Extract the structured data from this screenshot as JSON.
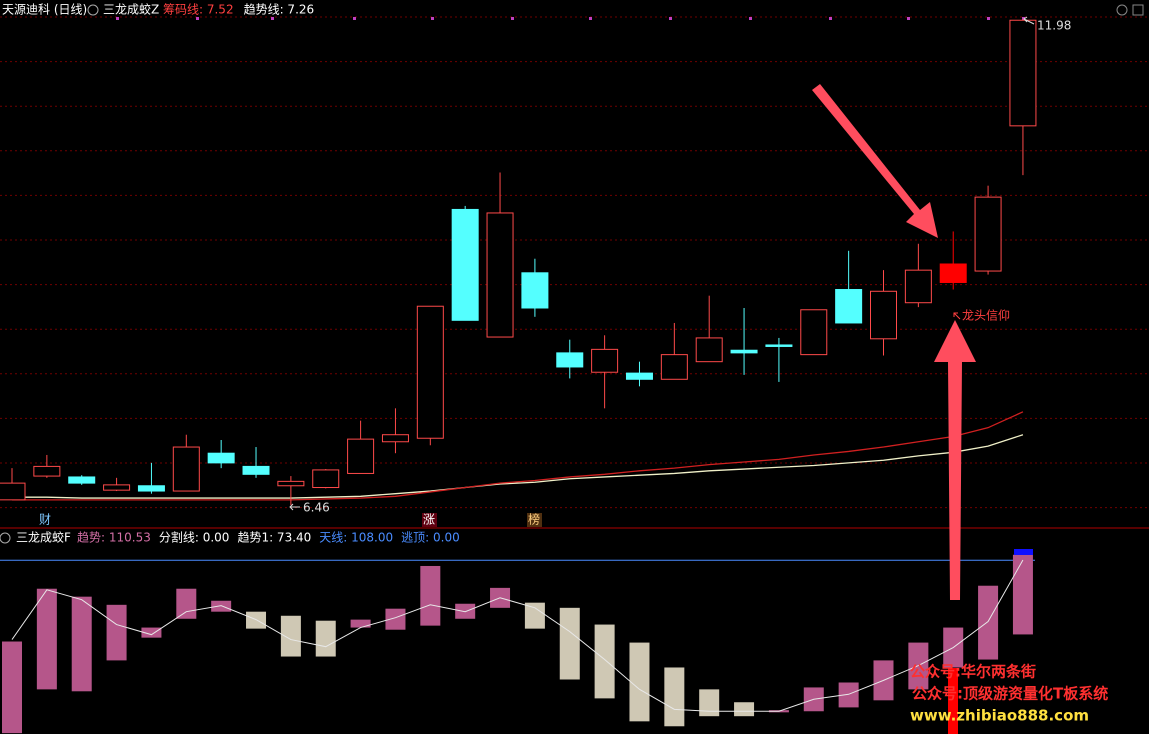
{
  "chart_data": [
    {
      "type": "candlestick",
      "title": "天源迪科 (日线)",
      "indicator": "三龙成蛟Z",
      "legend": [
        {
          "text": "筹码线: 7.52",
          "color": "#ff4040"
        },
        {
          "text": "趋势线: 7.26",
          "color": "#ffffff"
        }
      ],
      "ylim": [
        6.2,
        12.2
      ],
      "open": [
        6.52,
        6.79,
        6.78,
        6.63,
        6.68,
        6.62,
        7.05,
        6.9,
        6.68,
        6.66,
        6.82,
        7.18,
        7.22,
        9.82,
        8.37,
        9.1,
        8.19,
        7.97,
        7.96,
        7.89,
        8.09,
        8.22,
        8.28,
        8.17,
        8.91,
        8.35,
        8.76,
        8.99,
        9.12,
        10.77
      ],
      "high": [
        6.88,
        7.03,
        6.8,
        6.77,
        6.94,
        7.26,
        7.2,
        7.12,
        6.79,
        6.87,
        7.42,
        7.56,
        8.72,
        9.86,
        10.24,
        9.26,
        8.34,
        8.39,
        8.09,
        8.53,
        8.84,
        8.7,
        8.36,
        8.68,
        9.35,
        9.13,
        9.43,
        9.57,
        10.09,
        11.98
      ],
      "low": [
        6.52,
        6.77,
        6.69,
        6.62,
        6.59,
        6.62,
        6.88,
        6.77,
        6.46,
        6.65,
        6.82,
        7.05,
        7.14,
        8.56,
        8.37,
        8.6,
        7.9,
        7.56,
        7.81,
        7.89,
        8.09,
        7.94,
        7.86,
        8.17,
        8.53,
        8.16,
        8.71,
        8.91,
        9.08,
        10.21
      ],
      "close": [
        6.71,
        6.9,
        6.71,
        6.69,
        6.62,
        7.12,
        6.94,
        6.81,
        6.73,
        6.86,
        7.21,
        7.26,
        8.72,
        8.56,
        9.78,
        8.7,
        8.03,
        8.23,
        7.89,
        8.17,
        8.36,
        8.19,
        8.28,
        8.68,
        8.53,
        8.89,
        9.13,
        9.2,
        9.96,
        11.97
      ],
      "colors": [
        "#ff4a4a",
        "#ff4a4a",
        "#54ffff",
        "#ff4a4a",
        "#54ffff",
        "#ff4a4a",
        "#54ffff",
        "#54ffff",
        "#ff4a4a",
        "#ff4a4a",
        "#ff4a4a",
        "#ff4a4a",
        "#ff4a4a",
        "#54ffff",
        "#ff4a4a",
        "#54ffff",
        "#54ffff",
        "#ff4a4a",
        "#54ffff",
        "#ff4a4a",
        "#ff4a4a",
        "#54ffff",
        "#54ffff",
        "#ff4a4a",
        "#54ffff",
        "#ff4a4a",
        "#ff4a4a",
        "#ff0000",
        "#ff4a4a",
        "#ff4a4a"
      ],
      "filled": [
        false,
        false,
        true,
        false,
        true,
        false,
        true,
        true,
        false,
        false,
        false,
        false,
        false,
        true,
        false,
        true,
        true,
        false,
        true,
        false,
        false,
        true,
        true,
        false,
        true,
        false,
        false,
        true,
        false,
        false
      ],
      "series": [
        {
          "color": "#f0f0c8",
          "values": [
            6.55,
            6.55,
            6.54,
            6.54,
            6.54,
            6.54,
            6.54,
            6.54,
            6.54,
            6.55,
            6.56,
            6.59,
            6.62,
            6.66,
            6.7,
            6.72,
            6.76,
            6.78,
            6.8,
            6.82,
            6.85,
            6.87,
            6.89,
            6.91,
            6.94,
            6.97,
            7.02,
            7.06,
            7.13,
            7.26
          ]
        },
        {
          "color": "#d02020",
          "values": [
            6.52,
            6.52,
            6.52,
            6.52,
            6.52,
            6.52,
            6.52,
            6.52,
            6.52,
            6.53,
            6.54,
            6.56,
            6.61,
            6.66,
            6.71,
            6.74,
            6.78,
            6.81,
            6.85,
            6.88,
            6.92,
            6.95,
            6.98,
            7.03,
            7.07,
            7.12,
            7.18,
            7.24,
            7.34,
            7.52
          ]
        }
      ],
      "annotations": [
        "6.46",
        "11.98",
        "龙头信仰"
      ],
      "markers": [
        "财",
        "涨",
        "榜"
      ]
    },
    {
      "type": "bar",
      "indicator": "三龙成蛟F",
      "legend": [
        {
          "text": "趋势: 110.53",
          "color": "#d36fa6"
        },
        {
          "text": "分割线: 0.00",
          "color": "#ffffff"
        },
        {
          "text": "趋势1: 73.40",
          "color": "#ffffff"
        },
        {
          "text": "天线: 108.00",
          "color": "#4a8cff"
        },
        {
          "text": "逃顶: 0.00",
          "color": "#4a8cff"
        }
      ],
      "ylim": [
        27,
        123
      ],
      "tops": [
        70.1,
        94.7,
        91.0,
        87.2,
        76.6,
        94.7,
        89.1,
        84.0,
        82.1,
        79.8,
        80.3,
        85.4,
        105.3,
        87.7,
        95.1,
        88.2,
        85.8,
        78.0,
        69.6,
        58.0,
        47.8,
        41.8,
        38.1,
        48.7,
        51.0,
        61.3,
        69.6,
        76.6,
        96.1,
        110.53
      ],
      "bottoms": [
        27.4,
        47.8,
        46.9,
        61.3,
        71.9,
        80.7,
        84.0,
        76.1,
        63.1,
        63.1,
        76.6,
        75.6,
        77.5,
        80.7,
        85.8,
        76.1,
        52.4,
        43.6,
        32.9,
        30.6,
        35.3,
        35.3,
        37.1,
        37.6,
        39.4,
        42.7,
        47.8,
        58.0,
        61.7,
        73.4
      ],
      "colors": [
        "#b5568a",
        "#b5568a",
        "#b5568a",
        "#b5568a",
        "#b5568a",
        "#b5568a",
        "#b5568a",
        "#cfc8b4",
        "#cfc8b4",
        "#cfc8b4",
        "#b5568a",
        "#b5568a",
        "#b5568a",
        "#b5568a",
        "#b5568a",
        "#cfc8b4",
        "#cfc8b4",
        "#cfc8b4",
        "#cfc8b4",
        "#cfc8b4",
        "#cfc8b4",
        "#cfc8b4",
        "#b5568a",
        "#b5568a",
        "#b5568a",
        "#b5568a",
        "#b5568a",
        "#b5568a",
        "#b5568a",
        "#b5568a"
      ],
      "series": [
        {
          "color": "#e8e8e8",
          "values": [
            71.0,
            94.2,
            89.6,
            78.0,
            73.3,
            84.0,
            86.8,
            80.3,
            71.0,
            67.7,
            76.6,
            81.2,
            87.2,
            84.0,
            90.5,
            85.8,
            74.7,
            61.7,
            47.8,
            38.5,
            37.6,
            37.6,
            37.6,
            43.2,
            45.5,
            52.0,
            58.9,
            67.3,
            79.4,
            108.1
          ]
        }
      ],
      "reference": {
        "value": 108.0,
        "color": "#4a8cff"
      }
    },
    {
      "watermarks": [
        "公众号:华尔两条街",
        "公众号:顶级游资量化T板系统",
        "www.zhibiao888.com"
      ]
    }
  ]
}
